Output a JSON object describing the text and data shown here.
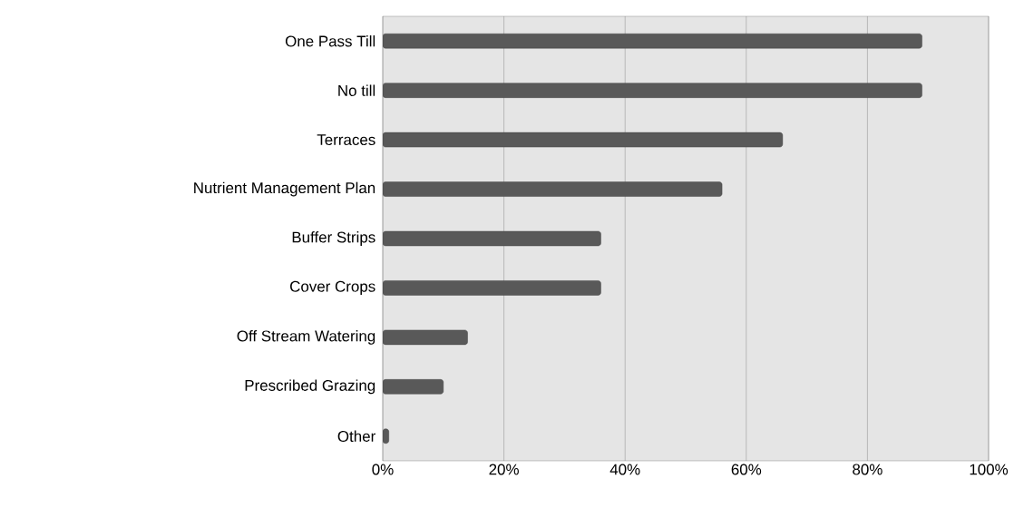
{
  "chart_data": {
    "type": "bar",
    "orientation": "horizontal",
    "categories": [
      "One Pass Till",
      "No till",
      "Terraces",
      "Nutrient Management Plan",
      "Buffer Strips",
      "Cover Crops",
      "Off Stream Watering",
      "Prescribed Grazing",
      "Other"
    ],
    "values": [
      89,
      89,
      66,
      56,
      36,
      36,
      14,
      10,
      1
    ],
    "color": "#595959",
    "xlim": [
      0,
      100
    ],
    "xticks": [
      {
        "value": 0,
        "label": "0%"
      },
      {
        "value": 20,
        "label": "20%"
      },
      {
        "value": 40,
        "label": "40%"
      },
      {
        "value": 60,
        "label": "60%"
      },
      {
        "value": 80,
        "label": "80%"
      },
      {
        "value": 100,
        "label": "100%"
      }
    ],
    "grid": "x"
  }
}
